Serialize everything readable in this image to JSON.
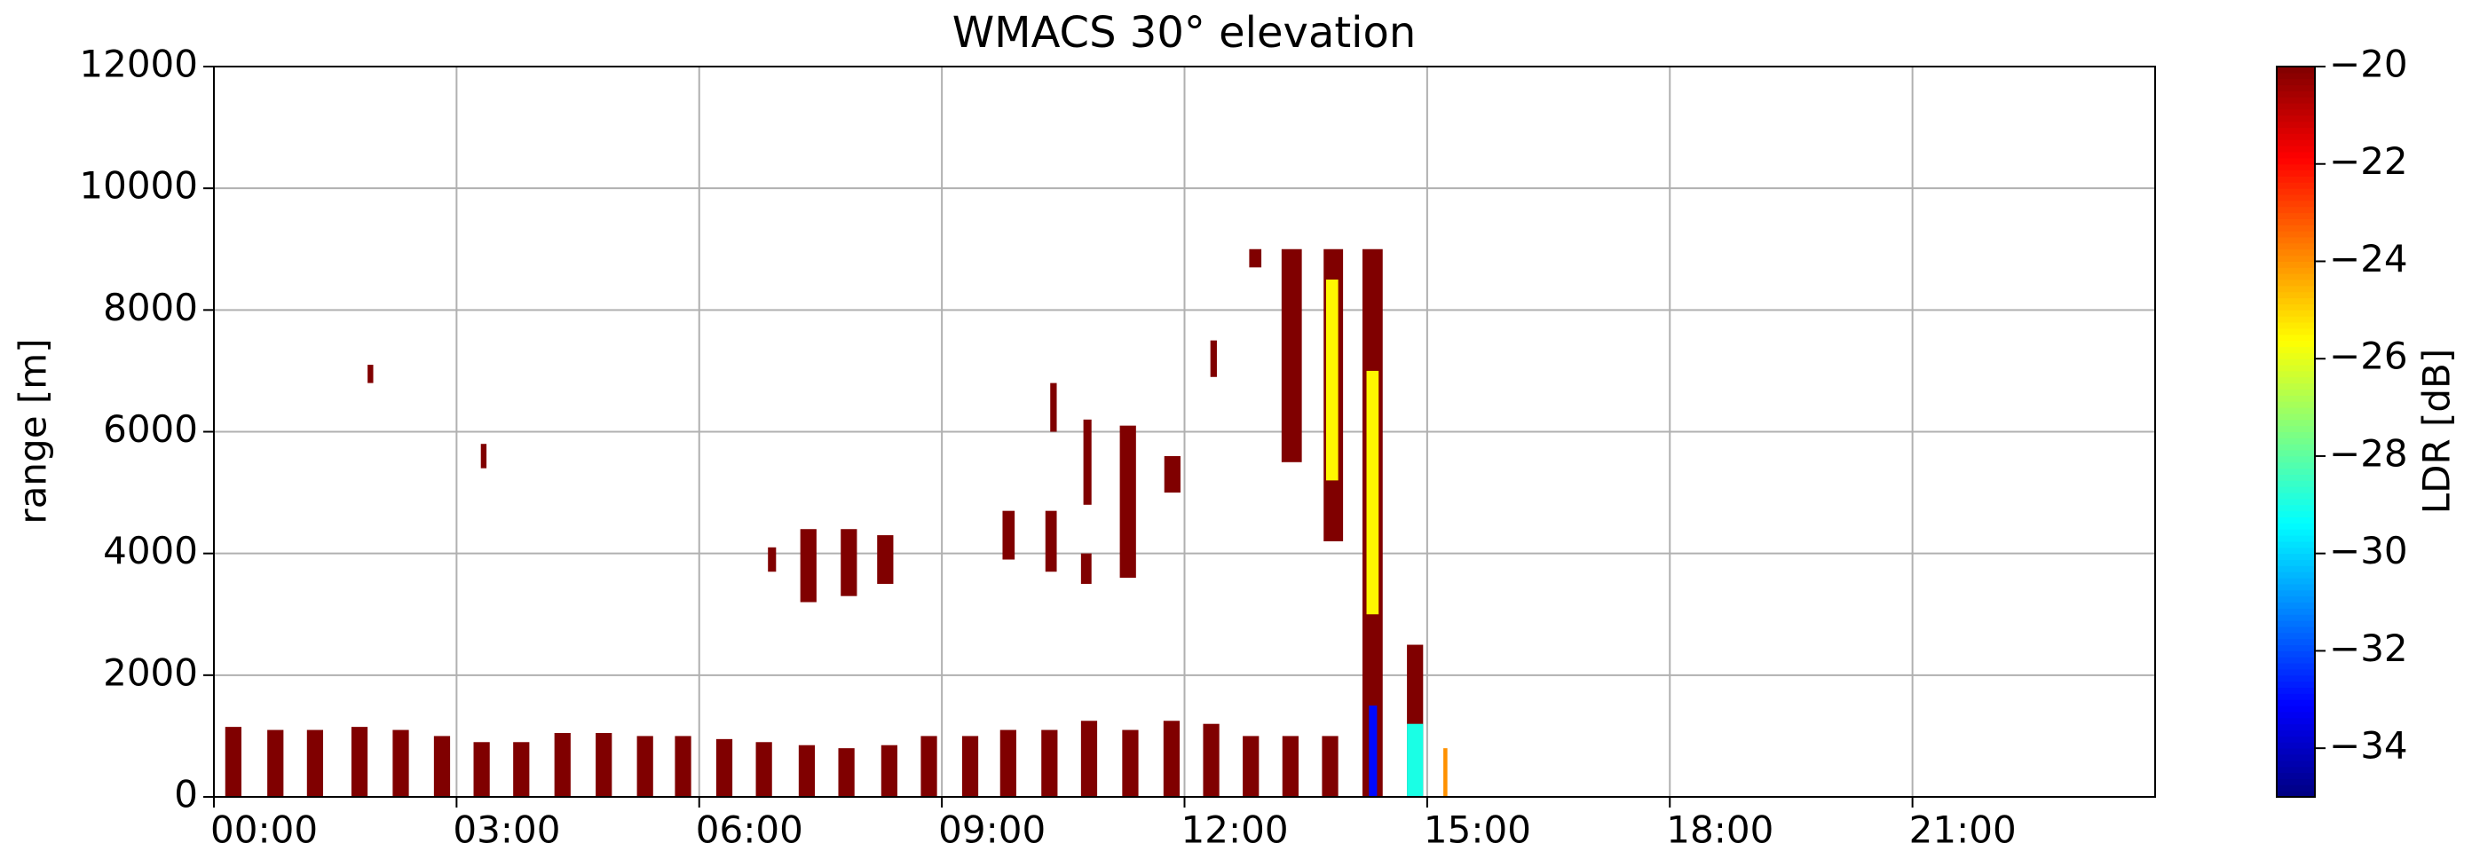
{
  "chart_data": {
    "type": "heatmap",
    "title": "WMACS 30° elevation",
    "y_label": "range [m]",
    "colorbar_label": "LDR [dB]",
    "colormap": "jet",
    "xlim": [
      0,
      24
    ],
    "ylim": [
      0,
      12000
    ],
    "clim": [
      -35,
      -20
    ],
    "xticks": [
      {
        "value": 0,
        "label": "00:00"
      },
      {
        "value": 3,
        "label": "03:00"
      },
      {
        "value": 6,
        "label": "06:00"
      },
      {
        "value": 9,
        "label": "09:00"
      },
      {
        "value": 12,
        "label": "12:00"
      },
      {
        "value": 15,
        "label": "15:00"
      },
      {
        "value": 18,
        "label": "18:00"
      },
      {
        "value": 21,
        "label": "21:00"
      }
    ],
    "yticks": [
      0,
      2000,
      4000,
      6000,
      8000,
      10000,
      12000
    ],
    "cticks": [
      {
        "value": -34,
        "label": "−34"
      },
      {
        "value": -32,
        "label": "−32"
      },
      {
        "value": -30,
        "label": "−30"
      },
      {
        "value": -28,
        "label": "−28"
      },
      {
        "value": -26,
        "label": "−26"
      },
      {
        "value": -24,
        "label": "−24"
      },
      {
        "value": -22,
        "label": "−22"
      },
      {
        "value": -20,
        "label": "−20"
      }
    ],
    "grid": true,
    "cells": [
      [
        0.14,
        0.34,
        0,
        1150,
        -20
      ],
      [
        0.66,
        0.86,
        0,
        1100,
        -20
      ],
      [
        1.15,
        1.35,
        0,
        1100,
        -20
      ],
      [
        1.7,
        1.9,
        0,
        1150,
        -20
      ],
      [
        2.21,
        2.41,
        0,
        1100,
        -20
      ],
      [
        2.72,
        2.92,
        0,
        1000,
        -20
      ],
      [
        3.21,
        3.41,
        0,
        900,
        -20
      ],
      [
        3.7,
        3.9,
        0,
        900,
        -20
      ],
      [
        4.21,
        4.41,
        0,
        1050,
        -20
      ],
      [
        4.72,
        4.92,
        0,
        1050,
        -20
      ],
      [
        5.23,
        5.43,
        0,
        1000,
        -20
      ],
      [
        5.7,
        5.9,
        0,
        1000,
        -20
      ],
      [
        6.21,
        6.41,
        0,
        950,
        -20
      ],
      [
        6.7,
        6.9,
        0,
        900,
        -20
      ],
      [
        7.23,
        7.43,
        0,
        850,
        -20
      ],
      [
        7.72,
        7.92,
        0,
        800,
        -20
      ],
      [
        8.25,
        8.45,
        0,
        850,
        -20
      ],
      [
        8.74,
        8.94,
        0,
        1000,
        -20
      ],
      [
        9.25,
        9.45,
        0,
        1000,
        -20
      ],
      [
        9.72,
        9.92,
        0,
        1100,
        -20
      ],
      [
        10.23,
        10.43,
        0,
        1100,
        -20
      ],
      [
        10.72,
        10.92,
        0,
        1250,
        -20
      ],
      [
        11.23,
        11.43,
        0,
        1100,
        -20
      ],
      [
        11.74,
        11.94,
        0,
        1250,
        -20
      ],
      [
        12.23,
        12.43,
        0,
        1200,
        -20
      ],
      [
        12.72,
        12.92,
        0,
        1000,
        -20
      ],
      [
        13.21,
        13.41,
        0,
        1000,
        -20
      ],
      [
        13.7,
        13.9,
        0,
        1000,
        -20
      ],
      [
        1.9,
        1.97,
        6800,
        7100,
        -20
      ],
      [
        3.3,
        3.37,
        5400,
        5800,
        -20
      ],
      [
        6.85,
        6.95,
        3700,
        4100,
        -20
      ],
      [
        7.25,
        7.45,
        3200,
        4400,
        -20
      ],
      [
        7.75,
        7.95,
        3300,
        4400,
        -20
      ],
      [
        8.2,
        8.4,
        3500,
        4300,
        -20
      ],
      [
        9.75,
        9.9,
        3900,
        4700,
        -20
      ],
      [
        10.28,
        10.42,
        3700,
        4700,
        -20
      ],
      [
        10.34,
        10.42,
        6000,
        6800,
        -20
      ],
      [
        10.75,
        10.85,
        4800,
        6200,
        -20
      ],
      [
        10.72,
        10.85,
        3500,
        4000,
        -20
      ],
      [
        11.2,
        11.4,
        3600,
        6100,
        -20
      ],
      [
        11.75,
        11.95,
        5000,
        5600,
        -20
      ],
      [
        12.32,
        12.4,
        6900,
        7500,
        -20
      ],
      [
        12.8,
        12.95,
        8700,
        9000,
        -20
      ],
      [
        13.2,
        13.45,
        5500,
        9000,
        -20
      ],
      [
        13.72,
        13.96,
        4200,
        9000,
        -20
      ],
      [
        13.75,
        13.9,
        5200,
        8500,
        -25.5
      ],
      [
        14.2,
        14.45,
        0,
        9000,
        -20
      ],
      [
        14.25,
        14.4,
        3000,
        7000,
        -25.5
      ],
      [
        14.28,
        14.38,
        0,
        1500,
        -33
      ],
      [
        14.75,
        14.95,
        0,
        2500,
        -20
      ],
      [
        14.75,
        14.95,
        0,
        1200,
        -29
      ],
      [
        15.2,
        15.25,
        0,
        800,
        -24
      ]
    ]
  }
}
